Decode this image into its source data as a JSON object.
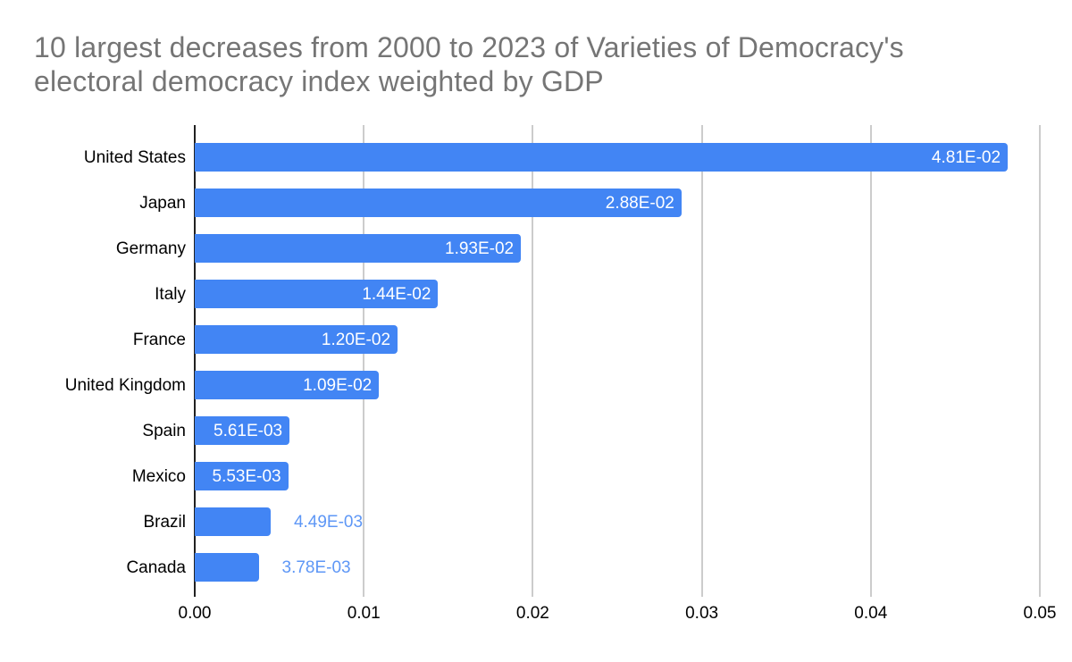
{
  "chart": {
    "title": "10 largest decreases from 2000 to 2023 of Varieties of Democracy's electoral democracy index weighted by GDP"
  },
  "chart_data": {
    "type": "bar",
    "orientation": "horizontal",
    "title": "10 largest decreases from 2000 to 2023 of Varieties of Democracy's electoral democracy index weighted by GDP",
    "categories": [
      "United States",
      "Japan",
      "Germany",
      "Italy",
      "France",
      "United Kingdom",
      "Spain",
      "Mexico",
      "Brazil",
      "Canada"
    ],
    "values": [
      0.0481,
      0.0288,
      0.0193,
      0.0144,
      0.012,
      0.0109,
      0.00561,
      0.00553,
      0.00449,
      0.00378
    ],
    "value_labels": [
      "4.81E-02",
      "2.88E-02",
      "1.93E-02",
      "1.44E-02",
      "1.20E-02",
      "1.09E-02",
      "5.61E-03",
      "5.53E-03",
      "4.49E-03",
      "3.78E-03"
    ],
    "x_ticks": [
      "0.00",
      "0.01",
      "0.02",
      "0.03",
      "0.04",
      "0.05"
    ],
    "xlabel": "",
    "ylabel": "",
    "xlim": [
      0,
      0.05
    ],
    "grid": true,
    "legend": "none",
    "colors": {
      "bar": "#4285f4",
      "label_inside": "#ffffff",
      "label_outside": "#5e97f6",
      "title": "#757575",
      "axis_text": "#000000",
      "gridline": "#cccccc",
      "axis_line": "#212121"
    }
  }
}
